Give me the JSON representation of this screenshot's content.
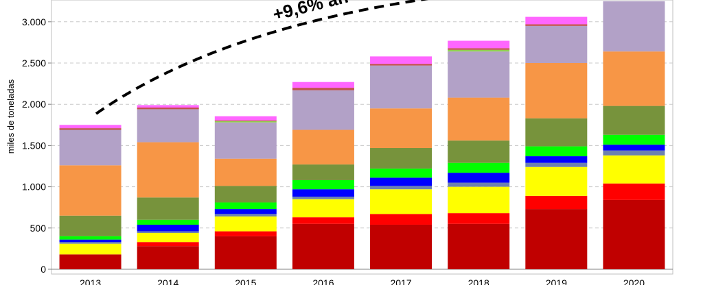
{
  "chart_data": {
    "type": "bar",
    "stacked": true,
    "ylabel": "miles de toneladas",
    "ylim": [
      0,
      3300
    ],
    "yticks": [
      0,
      500,
      1000,
      1500,
      2000,
      2500,
      3000
    ],
    "ytick_labels": [
      "0",
      "500",
      "1.000",
      "1.500",
      "2.000",
      "2.500",
      "3.000"
    ],
    "grid": true,
    "annotation": "+9,6% an",
    "categories": [
      "2013",
      "2014",
      "2015",
      "2016",
      "2017",
      "2018",
      "2019",
      "2020"
    ],
    "series": [
      {
        "color": "#c00000",
        "values": [
          180,
          280,
          400,
          550,
          540,
          550,
          730,
          840
        ]
      },
      {
        "color": "#ff0000",
        "values": [
          0,
          50,
          60,
          80,
          130,
          130,
          160,
          200
        ]
      },
      {
        "color": "#ffff00",
        "values": [
          130,
          110,
          180,
          220,
          300,
          320,
          350,
          340
        ]
      },
      {
        "color": "#6d81b0",
        "values": [
          20,
          20,
          30,
          30,
          40,
          50,
          50,
          60
        ]
      },
      {
        "color": "#0000ff",
        "values": [
          30,
          80,
          60,
          90,
          100,
          120,
          80,
          70
        ]
      },
      {
        "color": "#00ff00",
        "values": [
          40,
          60,
          80,
          110,
          110,
          120,
          120,
          120
        ]
      },
      {
        "color": "#77933c",
        "values": [
          250,
          270,
          200,
          190,
          250,
          270,
          340,
          350
        ]
      },
      {
        "color": "#f79646",
        "values": [
          610,
          670,
          330,
          420,
          480,
          520,
          670,
          660
        ]
      },
      {
        "color": "#b2a1c7",
        "values": [
          430,
          400,
          440,
          480,
          520,
          560,
          450,
          610
        ]
      },
      {
        "color": "#92d050",
        "values": [
          0,
          0,
          15,
          0,
          0,
          20,
          0,
          0
        ]
      },
      {
        "color": "#c0504d",
        "values": [
          20,
          20,
          10,
          30,
          20,
          20,
          20,
          0
        ]
      },
      {
        "color": "#ff66ff",
        "values": [
          40,
          30,
          50,
          70,
          90,
          90,
          90,
          0
        ]
      }
    ]
  }
}
